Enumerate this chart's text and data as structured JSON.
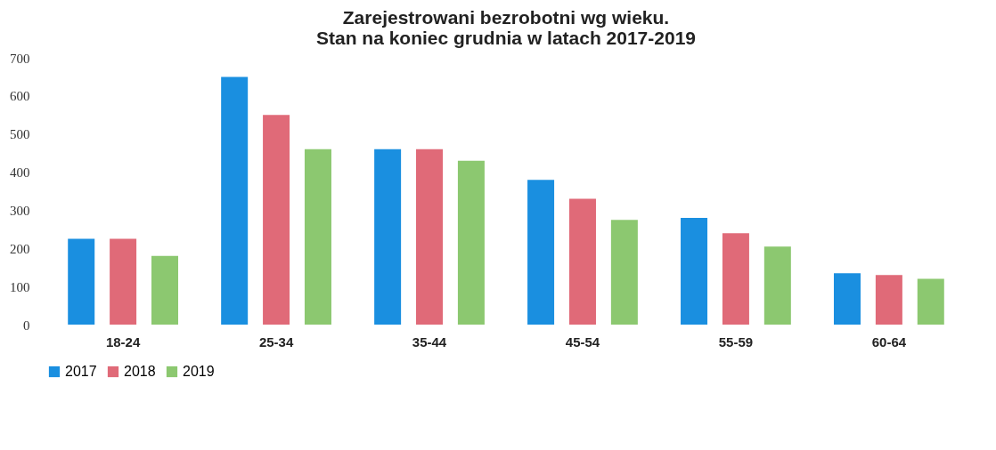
{
  "chart_data": {
    "type": "bar",
    "title": [
      "Zarejestrowani bezrobotni wg wieku.",
      "Stan na koniec grudnia w latach 2017-2019"
    ],
    "categories": [
      "18-24",
      "25-34",
      "35-44",
      "45-54",
      "55-59",
      "60-64"
    ],
    "series": [
      {
        "name": "2017",
        "color": "#1a8fe0",
        "values": [
          225,
          650,
          460,
          380,
          280,
          135
        ]
      },
      {
        "name": "2018",
        "color": "#e06a78",
        "values": [
          225,
          550,
          460,
          330,
          240,
          130
        ]
      },
      {
        "name": "2019",
        "color": "#8cc870",
        "values": [
          180,
          460,
          430,
          275,
          205,
          120
        ]
      }
    ],
    "ylim": [
      0,
      700
    ],
    "yticks": [
      0,
      100,
      200,
      300,
      400,
      500,
      600,
      700
    ],
    "grid": false,
    "legend": "bottom"
  }
}
